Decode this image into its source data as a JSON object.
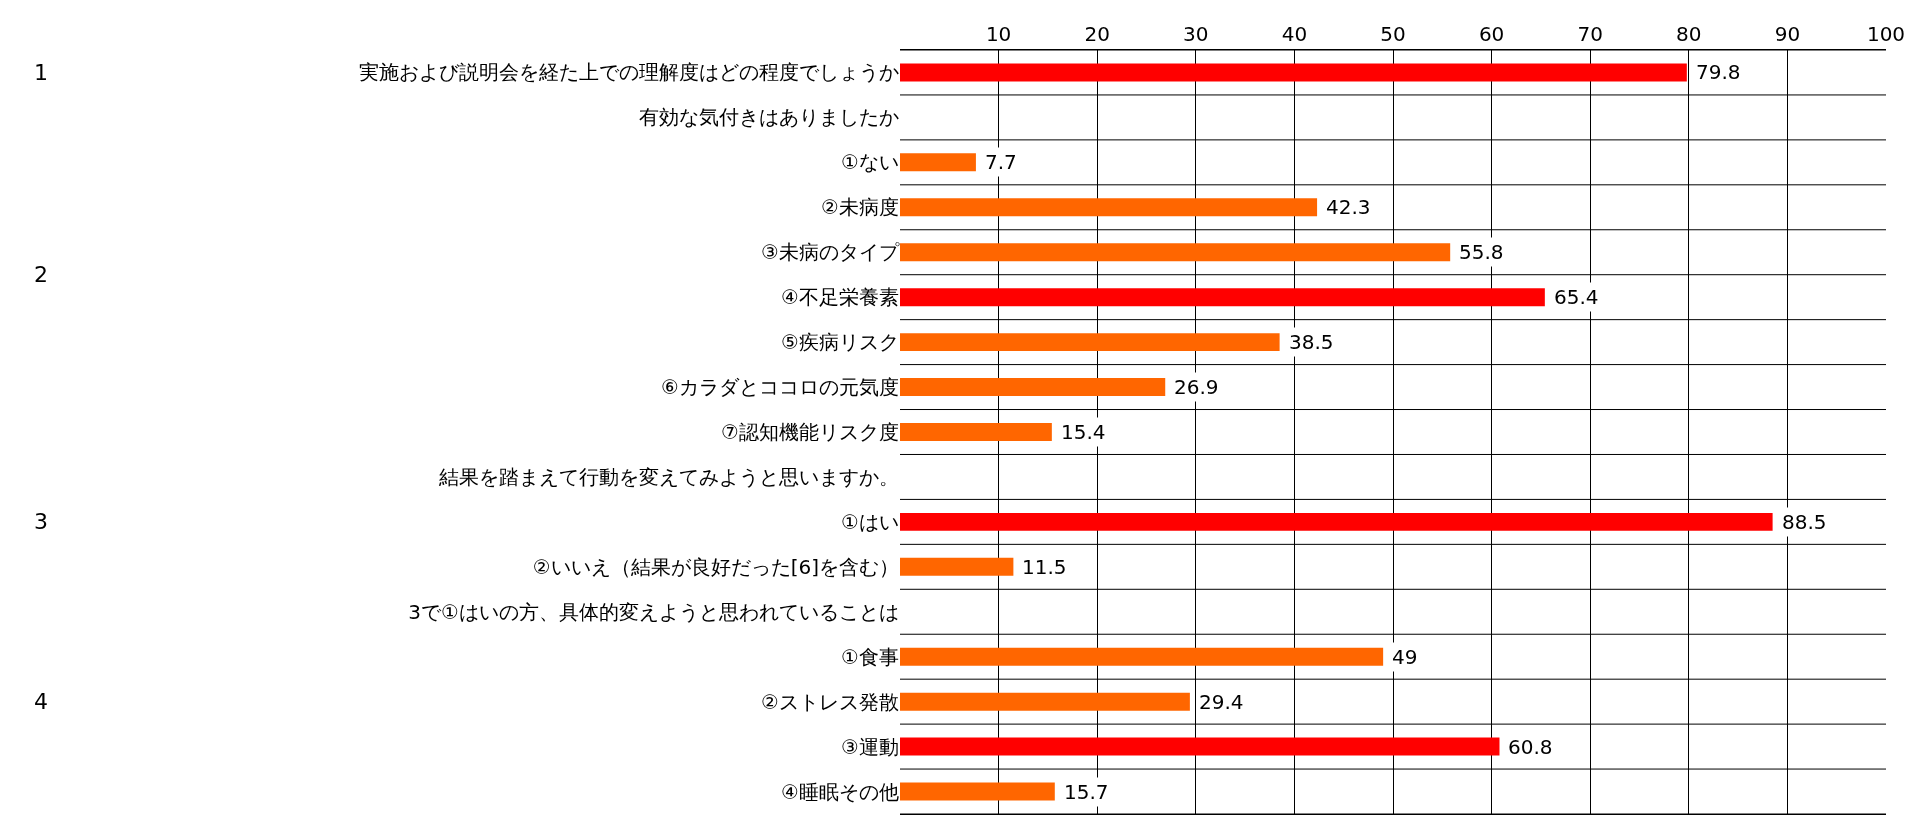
{
  "chart_data": {
    "type": "bar",
    "orientation": "horizontal",
    "categories": [
      "実施および説明会を経た上での理解度はどの程度でしょうか",
      "有効な気付きはありましたか",
      "①ない",
      "②未病度",
      "③未病のタイプ",
      "④不足栄養素",
      "⑤疾病リスク",
      "⑥カラダとココロの元気度",
      "⑦認知機能リスク度",
      "結果を踏まえて行動を変えてみようと思いますか。",
      "①はい",
      "②いいえ（結果が良好だった[6]を含む）",
      "3で①はいの方、具体的変えようと思われていることは",
      "①食事",
      "②ストレス発散",
      "③運動",
      "④睡眠その他"
    ],
    "values": [
      79.8,
      null,
      7.7,
      42.3,
      55.8,
      65.4,
      38.5,
      26.9,
      15.4,
      null,
      88.5,
      11.5,
      null,
      49,
      29.4,
      60.8,
      15.7
    ],
    "colors": [
      "#ff0000",
      null,
      "#ff6600",
      "#ff6600",
      "#ff6600",
      "#ff0000",
      "#ff6600",
      "#ff6600",
      "#ff6600",
      null,
      "#ff0000",
      "#ff6600",
      null,
      "#ff6600",
      "#ff6600",
      "#ff0000",
      "#ff6600"
    ],
    "xlim": [
      0,
      100
    ],
    "xticks": [
      10,
      20,
      30,
      40,
      50,
      60,
      70,
      80,
      90,
      100
    ],
    "data_labels": true,
    "grid": true,
    "annotations": [
      "1",
      "2",
      "3",
      "4"
    ]
  }
}
